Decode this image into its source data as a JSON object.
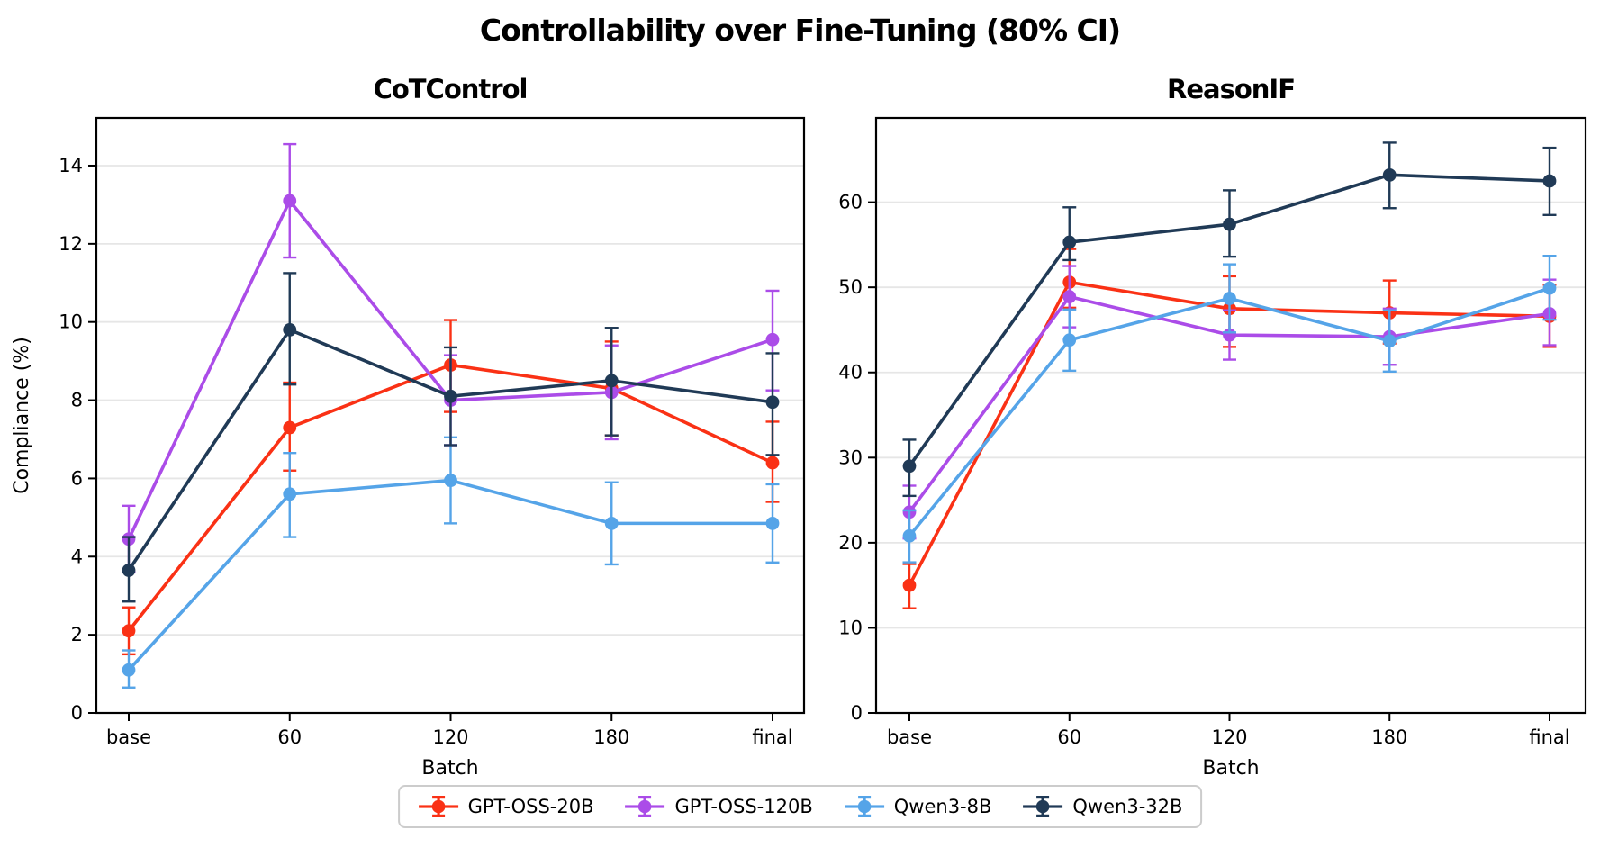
{
  "figure": {
    "title": "Controllability over Fine-Tuning (80% CI)"
  },
  "legend": {
    "items": [
      {
        "label": "GPT-OSS-20B",
        "color": "#fa3115"
      },
      {
        "label": "GPT-OSS-120B",
        "color": "#ab4ce8"
      },
      {
        "label": "Qwen3-8B",
        "color": "#55a4e8"
      },
      {
        "label": "Qwen3-32B",
        "color": "#203a56"
      }
    ]
  },
  "chart_data": [
    {
      "type": "line",
      "title": "CoTControl",
      "xlabel": "Batch",
      "ylabel": "Compliance (%)",
      "categories": [
        "base",
        "60",
        "120",
        "180",
        "final"
      ],
      "ylim": [
        0,
        15.22
      ],
      "yticks": [
        0,
        2,
        4,
        6,
        8,
        10,
        12,
        14
      ],
      "grid": true,
      "legend_position": "bottom-center-shared",
      "series": [
        {
          "name": "GPT-OSS-20B",
          "color": "#fa3115",
          "values": [
            2.1,
            7.3,
            8.9,
            8.3,
            6.4
          ],
          "ci_low": [
            1.5,
            6.2,
            7.7,
            7.1,
            5.4
          ],
          "ci_high": [
            2.7,
            8.45,
            10.05,
            9.5,
            7.45
          ]
        },
        {
          "name": "GPT-OSS-120B",
          "color": "#ab4ce8",
          "values": [
            4.45,
            13.1,
            8.0,
            8.2,
            9.55
          ],
          "ci_low": [
            3.6,
            11.65,
            6.85,
            7.0,
            8.25
          ],
          "ci_high": [
            5.3,
            14.55,
            9.15,
            9.4,
            10.8
          ]
        },
        {
          "name": "Qwen3-8B",
          "color": "#55a4e8",
          "values": [
            1.1,
            5.6,
            5.95,
            4.85,
            4.85
          ],
          "ci_low": [
            0.65,
            4.5,
            4.85,
            3.8,
            3.85
          ],
          "ci_high": [
            1.6,
            6.65,
            7.05,
            5.9,
            5.85
          ]
        },
        {
          "name": "Qwen3-32B",
          "color": "#203a56",
          "values": [
            3.65,
            9.8,
            8.1,
            8.5,
            7.95
          ],
          "ci_low": [
            2.85,
            8.4,
            6.85,
            7.1,
            6.6
          ],
          "ci_high": [
            4.5,
            11.25,
            9.35,
            9.85,
            9.2
          ]
        }
      ]
    },
    {
      "type": "line",
      "title": "ReasonIF",
      "xlabel": "Batch",
      "ylabel": "",
      "categories": [
        "base",
        "60",
        "120",
        "180",
        "final"
      ],
      "ylim": [
        0,
        69.9
      ],
      "yticks": [
        0,
        10,
        20,
        30,
        40,
        50,
        60
      ],
      "grid": true,
      "legend_position": "bottom-center-shared",
      "series": [
        {
          "name": "GPT-OSS-20B",
          "color": "#fa3115",
          "values": [
            15.0,
            50.6,
            47.5,
            47.0,
            46.6
          ],
          "ci_low": [
            12.3,
            47.6,
            43.0,
            43.4,
            43.0
          ],
          "ci_high": [
            17.5,
            54.5,
            51.3,
            50.8,
            50.3
          ]
        },
        {
          "name": "GPT-OSS-120B",
          "color": "#ab4ce8",
          "values": [
            23.6,
            48.9,
            44.4,
            44.2,
            46.9
          ],
          "ci_low": [
            20.5,
            45.3,
            41.5,
            40.9,
            43.2
          ],
          "ci_high": [
            26.7,
            52.5,
            47.3,
            47.5,
            50.9
          ]
        },
        {
          "name": "Qwen3-8B",
          "color": "#55a4e8",
          "values": [
            20.8,
            43.8,
            48.7,
            43.7,
            49.9
          ],
          "ci_low": [
            17.7,
            40.2,
            44.7,
            40.1,
            46.2
          ],
          "ci_high": [
            23.8,
            47.4,
            52.7,
            47.3,
            53.7
          ]
        },
        {
          "name": "Qwen3-32B",
          "color": "#203a56",
          "values": [
            29.0,
            55.3,
            57.4,
            63.2,
            62.5
          ],
          "ci_low": [
            25.5,
            53.2,
            53.6,
            59.3,
            58.5
          ],
          "ci_high": [
            32.1,
            59.4,
            61.4,
            67.0,
            66.4
          ]
        }
      ]
    }
  ]
}
